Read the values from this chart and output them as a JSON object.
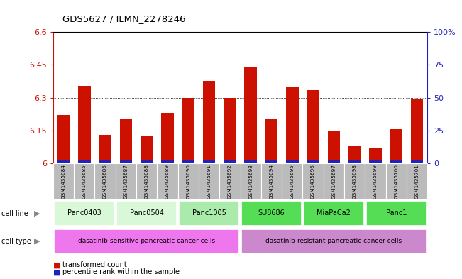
{
  "title": "GDS5627 / ILMN_2278246",
  "samples": [
    "GSM1435684",
    "GSM1435685",
    "GSM1435686",
    "GSM1435687",
    "GSM1435688",
    "GSM1435689",
    "GSM1435690",
    "GSM1435691",
    "GSM1435692",
    "GSM1435693",
    "GSM1435694",
    "GSM1435695",
    "GSM1435696",
    "GSM1435697",
    "GSM1435698",
    "GSM1435699",
    "GSM1435700",
    "GSM1435701"
  ],
  "transformed_counts": [
    6.22,
    6.355,
    6.13,
    6.2,
    6.125,
    6.23,
    6.3,
    6.375,
    6.3,
    6.44,
    6.2,
    6.35,
    6.335,
    6.15,
    6.08,
    6.07,
    6.155,
    6.295
  ],
  "percentile_ranks": [
    3,
    8,
    5,
    7,
    9,
    5,
    6,
    10,
    8,
    8,
    9,
    8,
    9,
    3,
    5,
    3,
    8,
    7
  ],
  "y_min": 6.0,
  "y_max": 6.6,
  "y_ticks": [
    6.0,
    6.15,
    6.3,
    6.45,
    6.6
  ],
  "y_tick_labels": [
    "6",
    "6.15",
    "6.3",
    "6.45",
    "6.6"
  ],
  "right_y_ticks_pct": [
    0,
    25,
    50,
    75,
    100
  ],
  "right_y_labels": [
    "0",
    "25",
    "50",
    "75",
    "100%"
  ],
  "bar_color_red": "#cc1100",
  "bar_color_blue": "#2222bb",
  "sample_bg": "#bbbbbb",
  "cell_lines": [
    {
      "label": "Panc0403",
      "start": 0,
      "end": 2,
      "color": "#d8f8d8"
    },
    {
      "label": "Panc0504",
      "start": 3,
      "end": 5,
      "color": "#d8f8d8"
    },
    {
      "label": "Panc1005",
      "start": 6,
      "end": 8,
      "color": "#aaeaaa"
    },
    {
      "label": "SU8686",
      "start": 9,
      "end": 11,
      "color": "#55dd55"
    },
    {
      "label": "MiaPaCa2",
      "start": 12,
      "end": 14,
      "color": "#55dd55"
    },
    {
      "label": "Panc1",
      "start": 15,
      "end": 17,
      "color": "#55dd55"
    }
  ],
  "cell_types": [
    {
      "label": "dasatinib-sensitive pancreatic cancer cells",
      "start": 0,
      "end": 8,
      "color": "#ee77ee"
    },
    {
      "label": "dasatinib-resistant pancreatic cancer cells",
      "start": 9,
      "end": 17,
      "color": "#cc88cc"
    }
  ],
  "legend_items": [
    {
      "color": "#cc1100",
      "label": "transformed count"
    },
    {
      "color": "#2222bb",
      "label": "percentile rank within the sample"
    }
  ]
}
